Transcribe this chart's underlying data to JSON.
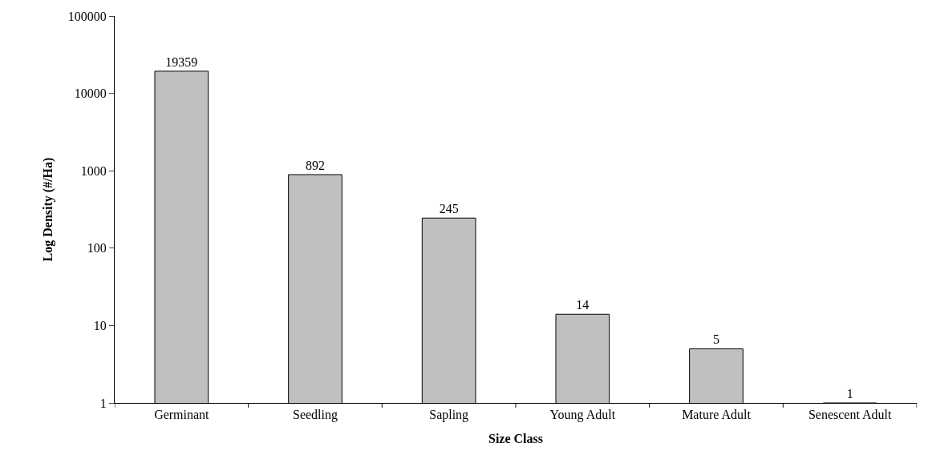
{
  "chart_data": {
    "type": "bar",
    "xlabel": "Size Class",
    "ylabel": "Log Density (#/Ha)",
    "categories": [
      "Germinant",
      "Seedling",
      "Sapling",
      "Young Adult",
      "Mature Adult",
      "Senescent Adult"
    ],
    "values": [
      19359,
      892,
      245,
      14,
      5,
      1
    ],
    "color": "#c0c0c0",
    "log": true,
    "ylim": [
      1,
      100000
    ],
    "yticks": [
      1,
      10,
      100,
      1000,
      10000,
      100000
    ],
    "legend": false,
    "data_labels": true
  }
}
